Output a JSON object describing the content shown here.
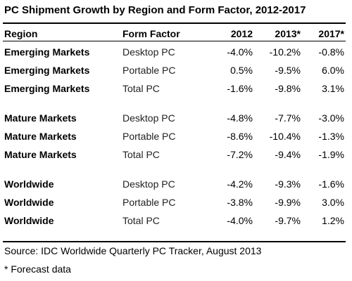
{
  "title": "PC Shipment Growth by Region and Form Factor, 2012-2017",
  "headers": {
    "region": "Region",
    "form_factor": "Form Factor",
    "y2012": "2012",
    "y2013": "2013*",
    "y2017": "2017*"
  },
  "groups": [
    {
      "rows": [
        {
          "region": "Emerging Markets",
          "form_factor": "Desktop PC",
          "y2012": "-4.0%",
          "y2013": "-10.2%",
          "y2017": "-0.8%"
        },
        {
          "region": "Emerging Markets",
          "form_factor": "Portable PC",
          "y2012": "0.5%",
          "y2013": "-9.5%",
          "y2017": "6.0%"
        },
        {
          "region": "Emerging Markets",
          "form_factor": "Total PC",
          "y2012": "-1.6%",
          "y2013": "-9.8%",
          "y2017": "3.1%"
        }
      ]
    },
    {
      "rows": [
        {
          "region": "Mature Markets",
          "form_factor": "Desktop PC",
          "y2012": "-4.8%",
          "y2013": "-7.7%",
          "y2017": "-3.0%"
        },
        {
          "region": "Mature Markets",
          "form_factor": "Portable PC",
          "y2012": "-8.6%",
          "y2013": "-10.4%",
          "y2017": "-1.3%"
        },
        {
          "region": "Mature Markets",
          "form_factor": "Total PC",
          "y2012": "-7.2%",
          "y2013": "-9.4%",
          "y2017": "-1.9%"
        }
      ]
    },
    {
      "rows": [
        {
          "region": "Worldwide",
          "form_factor": "Desktop PC",
          "y2012": "-4.2%",
          "y2013": "-9.3%",
          "y2017": "-1.6%"
        },
        {
          "region": "Worldwide",
          "form_factor": "Portable PC",
          "y2012": "-3.8%",
          "y2013": "-9.9%",
          "y2017": "3.0%"
        },
        {
          "region": "Worldwide",
          "form_factor": "Total PC",
          "y2012": "-4.0%",
          "y2013": "-9.7%",
          "y2017": "1.2%"
        }
      ]
    }
  ],
  "source": "Source: IDC Worldwide Quarterly PC Tracker, August 2013",
  "note": "* Forecast data",
  "colors": {
    "text": "#000000",
    "background": "#ffffff",
    "rule": "#000000"
  }
}
